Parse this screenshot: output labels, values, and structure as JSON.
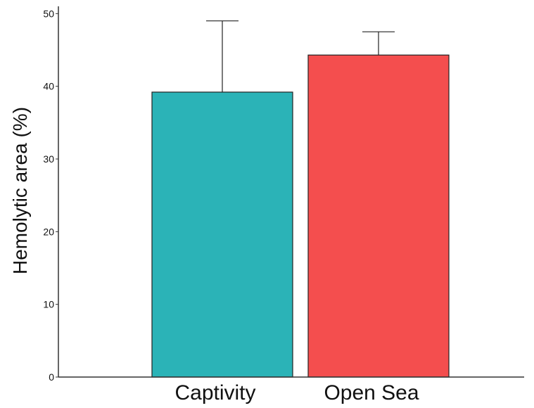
{
  "chart_data": {
    "type": "bar",
    "categories": [
      "Captivity",
      "Open Sea"
    ],
    "values": [
      39.2,
      44.3
    ],
    "error_upper": [
      49.0,
      47.5
    ],
    "colors": [
      "#2bb3b7",
      "#f44e4e"
    ],
    "ylabel": "Hemolytic area (%)",
    "xlabel": "",
    "ylim": [
      0,
      51
    ],
    "yticks": [
      0,
      10,
      20,
      30,
      40,
      50
    ],
    "grid": false
  }
}
